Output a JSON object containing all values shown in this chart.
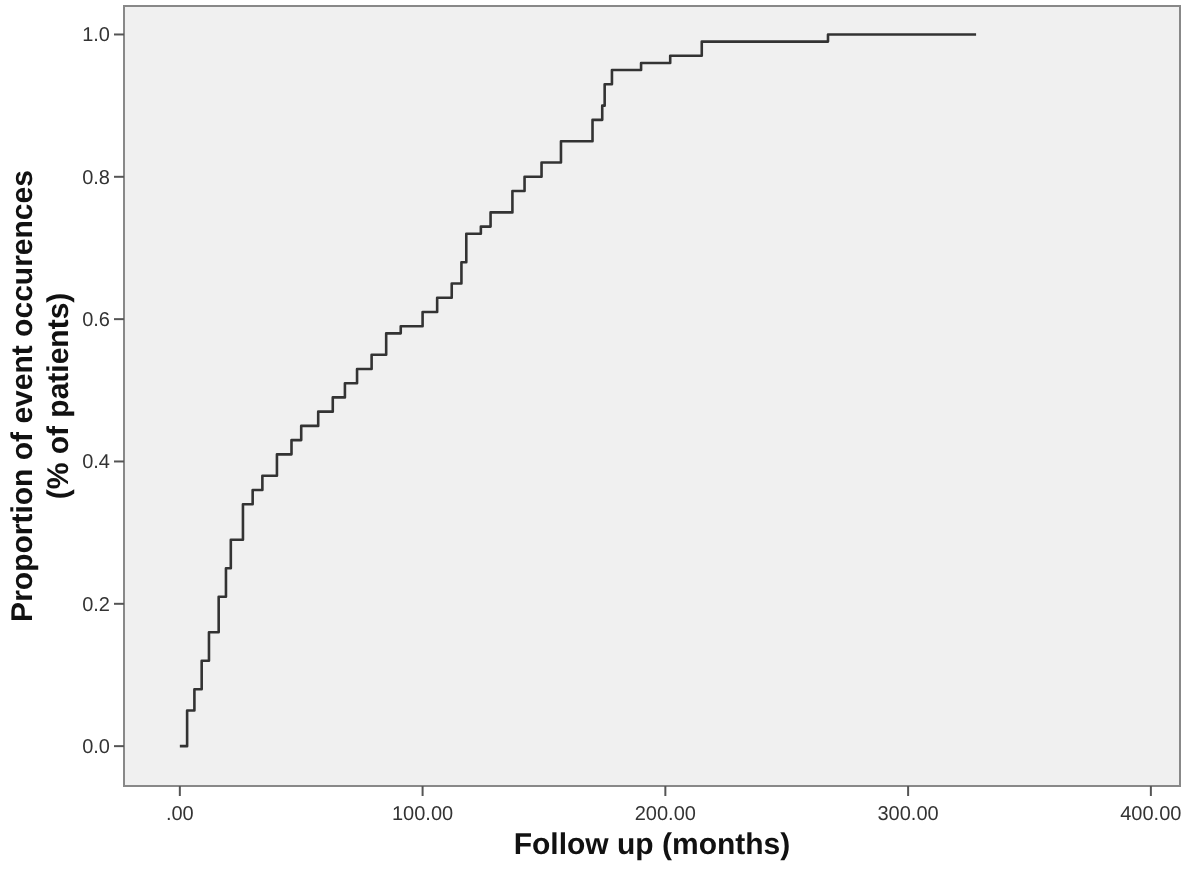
{
  "chart_data": {
    "type": "step",
    "xlabel": "Follow up (months)",
    "ylabel": "Proportion of event occurences\n(% of patients)",
    "xlim": [
      -23,
      412
    ],
    "ylim": [
      -0.056,
      1.04
    ],
    "xticks": [
      {
        "value": 0,
        "label": ".00"
      },
      {
        "value": 100,
        "label": "100.00"
      },
      {
        "value": 200,
        "label": "200.00"
      },
      {
        "value": 300,
        "label": "300.00"
      },
      {
        "value": 400,
        "label": "400.00"
      }
    ],
    "yticks": [
      {
        "value": 0,
        "label": "0.0"
      },
      {
        "value": 0.2,
        "label": "0.2"
      },
      {
        "value": 0.4,
        "label": "0.4"
      },
      {
        "value": 0.6,
        "label": "0.6"
      },
      {
        "value": 0.8,
        "label": "0.8"
      },
      {
        "value": 1,
        "label": "1.0"
      }
    ],
    "grid": false,
    "series": [
      {
        "color": "#333333",
        "x": [
          0,
          3,
          6,
          9,
          12,
          16,
          19,
          21,
          26,
          30,
          34,
          40,
          46,
          50,
          57,
          63,
          68,
          73,
          79,
          85,
          91,
          100,
          106,
          112,
          116,
          118,
          124,
          128,
          137,
          142,
          149,
          157,
          170,
          174,
          175,
          178,
          190,
          202,
          215,
          227,
          240,
          267,
          328
        ],
        "values": [
          0,
          0.05,
          0.08,
          0.12,
          0.16,
          0.21,
          0.25,
          0.29,
          0.34,
          0.36,
          0.38,
          0.41,
          0.43,
          0.45,
          0.47,
          0.49,
          0.51,
          0.53,
          0.55,
          0.58,
          0.59,
          0.61,
          0.63,
          0.65,
          0.68,
          0.72,
          0.73,
          0.75,
          0.78,
          0.8,
          0.82,
          0.85,
          0.88,
          0.9,
          0.93,
          0.95,
          0.96,
          0.97,
          0.99,
          0.99,
          0.99,
          1,
          1
        ]
      }
    ]
  }
}
